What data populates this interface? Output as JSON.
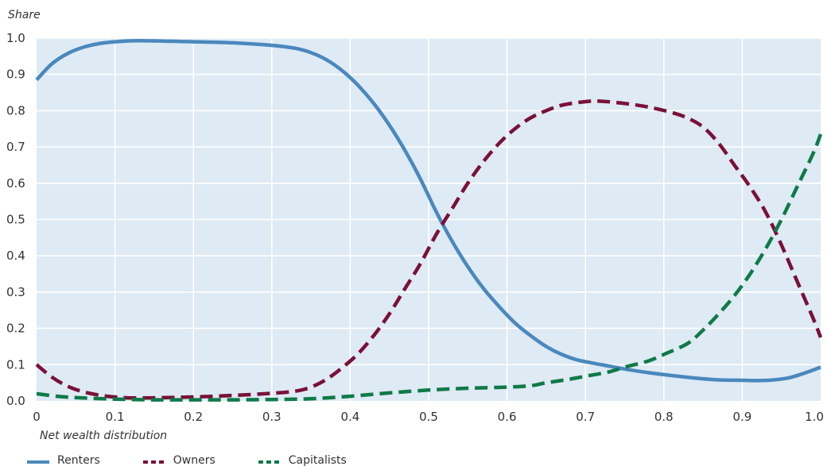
{
  "chart_data": {
    "type": "line",
    "ylabel": "Share",
    "xlabel": "Net wealth distribution",
    "xlim": [
      0,
      1
    ],
    "ylim": [
      0,
      1
    ],
    "x_ticks": [
      "0",
      "0.1",
      "0.2",
      "0.3",
      "0.4",
      "0.5",
      "0.6",
      "0.7",
      "0.8",
      "0.9",
      "1.0"
    ],
    "y_ticks": [
      "0.0",
      "0.1",
      "0.2",
      "0.3",
      "0.4",
      "0.5",
      "0.6",
      "0.7",
      "0.8",
      "0.9",
      "1.0"
    ],
    "grid": true,
    "legend_position": "bottom-left",
    "background_color": "#deeaf4",
    "grid_color": "#ffffff",
    "series": [
      {
        "name": "Renters",
        "color": "#4a88bd",
        "style": "solid",
        "points": [
          [
            0,
            0.885
          ],
          [
            0.02,
            0.93
          ],
          [
            0.04,
            0.958
          ],
          [
            0.06,
            0.975
          ],
          [
            0.08,
            0.985
          ],
          [
            0.1,
            0.99
          ],
          [
            0.13,
            0.993
          ],
          [
            0.2,
            0.99
          ],
          [
            0.25,
            0.987
          ],
          [
            0.3,
            0.98
          ],
          [
            0.33,
            0.972
          ],
          [
            0.35,
            0.96
          ],
          [
            0.37,
            0.94
          ],
          [
            0.39,
            0.91
          ],
          [
            0.41,
            0.87
          ],
          [
            0.43,
            0.82
          ],
          [
            0.45,
            0.76
          ],
          [
            0.47,
            0.69
          ],
          [
            0.49,
            0.61
          ],
          [
            0.51,
            0.52
          ],
          [
            0.53,
            0.44
          ],
          [
            0.55,
            0.37
          ],
          [
            0.57,
            0.31
          ],
          [
            0.59,
            0.26
          ],
          [
            0.61,
            0.215
          ],
          [
            0.63,
            0.18
          ],
          [
            0.65,
            0.15
          ],
          [
            0.67,
            0.128
          ],
          [
            0.69,
            0.113
          ],
          [
            0.72,
            0.1
          ],
          [
            0.75,
            0.088
          ],
          [
            0.78,
            0.078
          ],
          [
            0.81,
            0.07
          ],
          [
            0.84,
            0.063
          ],
          [
            0.87,
            0.058
          ],
          [
            0.9,
            0.057
          ],
          [
            0.92,
            0.056
          ],
          [
            0.94,
            0.058
          ],
          [
            0.96,
            0.064
          ],
          [
            0.98,
            0.077
          ],
          [
            1.0,
            0.093
          ]
        ]
      },
      {
        "name": "Owners",
        "color": "#7a1038",
        "style": "dashed",
        "points": [
          [
            0,
            0.1
          ],
          [
            0.02,
            0.065
          ],
          [
            0.04,
            0.04
          ],
          [
            0.06,
            0.025
          ],
          [
            0.08,
            0.016
          ],
          [
            0.1,
            0.011
          ],
          [
            0.13,
            0.008
          ],
          [
            0.2,
            0.011
          ],
          [
            0.25,
            0.015
          ],
          [
            0.3,
            0.021
          ],
          [
            0.33,
            0.027
          ],
          [
            0.35,
            0.038
          ],
          [
            0.37,
            0.06
          ],
          [
            0.39,
            0.092
          ],
          [
            0.41,
            0.13
          ],
          [
            0.43,
            0.18
          ],
          [
            0.45,
            0.24
          ],
          [
            0.47,
            0.31
          ],
          [
            0.49,
            0.38
          ],
          [
            0.51,
            0.46
          ],
          [
            0.53,
            0.53
          ],
          [
            0.55,
            0.6
          ],
          [
            0.57,
            0.66
          ],
          [
            0.59,
            0.71
          ],
          [
            0.61,
            0.75
          ],
          [
            0.63,
            0.78
          ],
          [
            0.65,
            0.8
          ],
          [
            0.67,
            0.815
          ],
          [
            0.7,
            0.825
          ],
          [
            0.72,
            0.826
          ],
          [
            0.75,
            0.82
          ],
          [
            0.78,
            0.81
          ],
          [
            0.81,
            0.795
          ],
          [
            0.83,
            0.78
          ],
          [
            0.85,
            0.755
          ],
          [
            0.87,
            0.71
          ],
          [
            0.89,
            0.65
          ],
          [
            0.91,
            0.59
          ],
          [
            0.93,
            0.52
          ],
          [
            0.95,
            0.43
          ],
          [
            0.97,
            0.33
          ],
          [
            0.99,
            0.23
          ],
          [
            1.0,
            0.175
          ]
        ]
      },
      {
        "name": "Capitalists",
        "color": "#0e7a48",
        "style": "dashed",
        "points": [
          [
            0,
            0.02
          ],
          [
            0.03,
            0.012
          ],
          [
            0.06,
            0.008
          ],
          [
            0.1,
            0.005
          ],
          [
            0.15,
            0.003
          ],
          [
            0.2,
            0.003
          ],
          [
            0.25,
            0.003
          ],
          [
            0.3,
            0.004
          ],
          [
            0.35,
            0.006
          ],
          [
            0.4,
            0.013
          ],
          [
            0.45,
            0.022
          ],
          [
            0.5,
            0.03
          ],
          [
            0.55,
            0.035
          ],
          [
            0.6,
            0.038
          ],
          [
            0.63,
            0.042
          ],
          [
            0.65,
            0.05
          ],
          [
            0.68,
            0.06
          ],
          [
            0.7,
            0.068
          ],
          [
            0.73,
            0.08
          ],
          [
            0.75,
            0.093
          ],
          [
            0.78,
            0.11
          ],
          [
            0.8,
            0.128
          ],
          [
            0.83,
            0.158
          ],
          [
            0.85,
            0.195
          ],
          [
            0.87,
            0.24
          ],
          [
            0.89,
            0.29
          ],
          [
            0.91,
            0.35
          ],
          [
            0.93,
            0.42
          ],
          [
            0.95,
            0.5
          ],
          [
            0.97,
            0.59
          ],
          [
            0.99,
            0.68
          ],
          [
            1.0,
            0.735
          ]
        ]
      }
    ]
  }
}
